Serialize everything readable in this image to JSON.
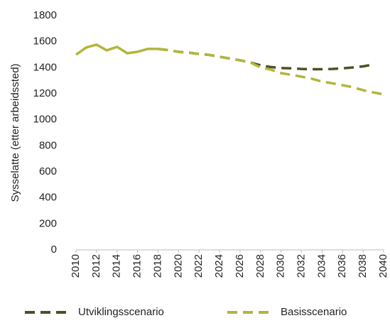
{
  "chart_data": {
    "type": "line",
    "ylabel": "Sysselatte (etter arbeidssted)",
    "x": [
      2010,
      2011,
      2012,
      2013,
      2014,
      2015,
      2016,
      2017,
      2018,
      2019,
      2020,
      2021,
      2022,
      2023,
      2024,
      2025,
      2026,
      2027,
      2028,
      2029,
      2030,
      2031,
      2032,
      2033,
      2034,
      2035,
      2036,
      2037,
      2038,
      2039,
      2040
    ],
    "xlim": [
      2010,
      2040
    ],
    "xticks": [
      2010,
      2012,
      2014,
      2016,
      2018,
      2020,
      2022,
      2024,
      2026,
      2028,
      2030,
      2032,
      2034,
      2036,
      2038,
      2040
    ],
    "ylim": [
      0,
      1800
    ],
    "yticks": [
      0,
      200,
      400,
      600,
      800,
      1000,
      1200,
      1400,
      1600,
      1800
    ],
    "grid": false,
    "legend": "bottom",
    "solid_until": 2018,
    "series": [
      {
        "name": "Utviklingsscenario",
        "color": "#4f5023",
        "values": [
          null,
          null,
          null,
          null,
          null,
          null,
          null,
          null,
          1544,
          1535,
          1522,
          1515,
          1505,
          1498,
          1484,
          1470,
          1457,
          1440,
          1418,
          1405,
          1397,
          1395,
          1390,
          1388,
          1388,
          1390,
          1395,
          1402,
          1410,
          1425,
          null
        ]
      },
      {
        "name": "Basisscenario",
        "color": "#b3b53a",
        "values": [
          1500,
          1555,
          1577,
          1533,
          1560,
          1511,
          1522,
          1544,
          1544,
          1535,
          1522,
          1515,
          1505,
          1498,
          1484,
          1470,
          1457,
          1440,
          1402,
          1385,
          1358,
          1345,
          1331,
          1315,
          1293,
          1280,
          1265,
          1250,
          1227,
          1210,
          1195
        ]
      }
    ]
  }
}
